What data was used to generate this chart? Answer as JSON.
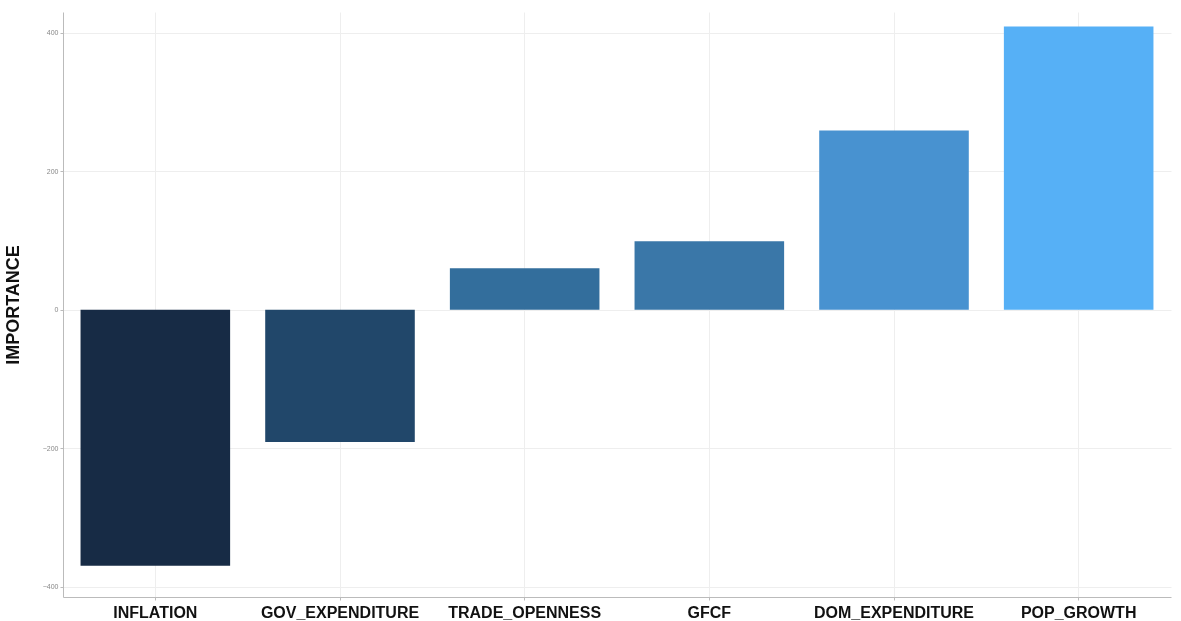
{
  "chart_data": {
    "type": "bar",
    "ylabel": "IMPORTANCE",
    "categories": [
      "INFLATION",
      "GOV_EXPENDITURE",
      "TRADE_OPENNESS",
      "GFCF",
      "DOM_EXPENDITURE",
      "POP_GROWTH"
    ],
    "values": [
      -370,
      -191,
      60,
      99,
      259,
      409
    ],
    "colors": [
      "#172b45",
      "#21476a",
      "#336e9c",
      "#3a77a8",
      "#4892d0",
      "#56b0f6"
    ],
    "ylim": [
      -415,
      430
    ],
    "yticks": [
      -400,
      -200,
      0,
      200,
      400
    ],
    "grid": true
  }
}
